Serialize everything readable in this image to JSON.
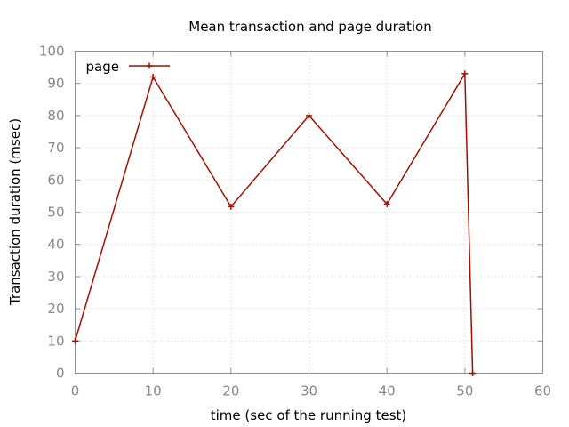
{
  "chart_data": {
    "type": "line",
    "title": "Mean transaction and page duration",
    "xlabel": "time (sec of the running test)",
    "ylabel": "Transaction duration (msec)",
    "xlim": [
      0,
      60
    ],
    "ylim": [
      0,
      100
    ],
    "xticks": [
      0,
      10,
      20,
      30,
      40,
      50,
      60
    ],
    "yticks": [
      0,
      10,
      20,
      30,
      40,
      50,
      60,
      70,
      80,
      90,
      100
    ],
    "grid": true,
    "legend_position": "top-left",
    "series": [
      {
        "name": "page",
        "color": "#a01000",
        "marker": "plus",
        "x": [
          0,
          10,
          20,
          30,
          40,
          50,
          51
        ],
        "y": [
          10,
          92,
          51.7,
          80,
          52.5,
          93,
          0
        ]
      }
    ]
  }
}
